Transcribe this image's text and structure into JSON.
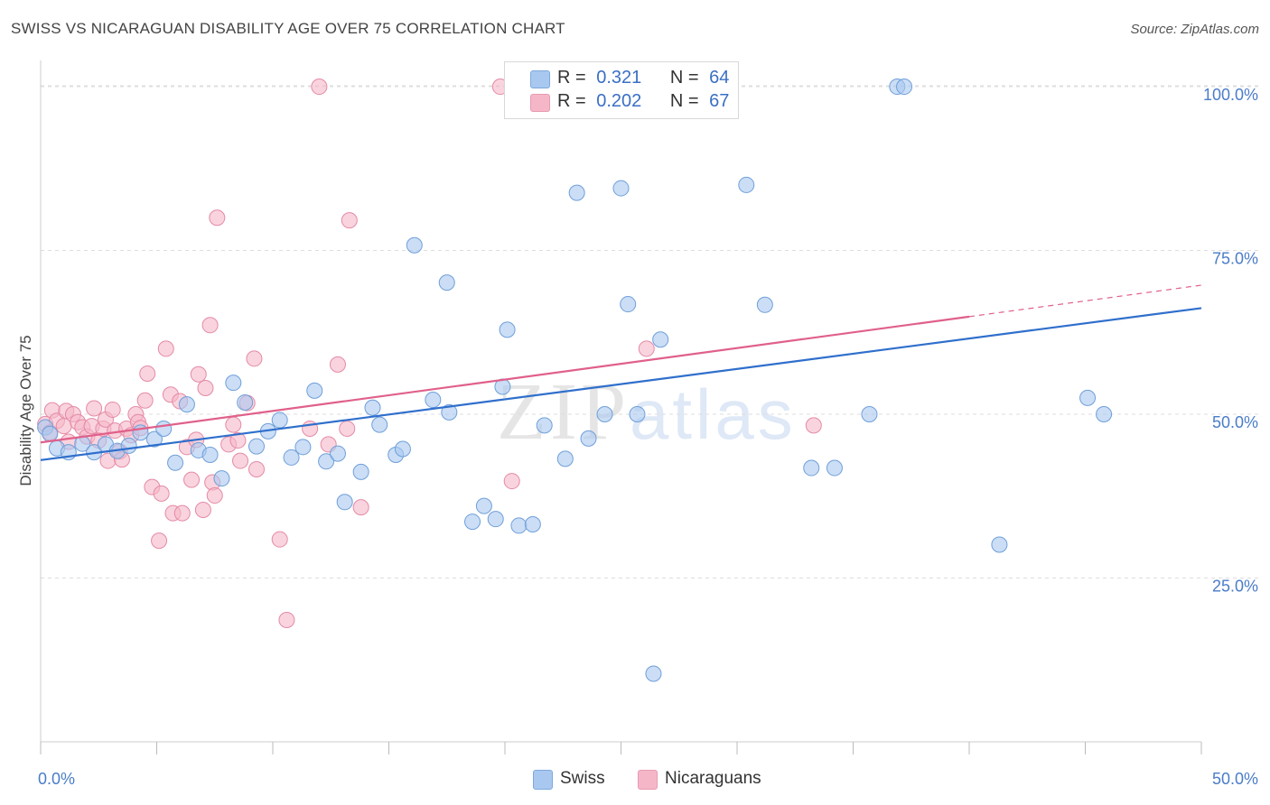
{
  "title": "SWISS VS NICARAGUAN DISABILITY AGE OVER 75 CORRELATION CHART",
  "source": "Source: ZipAtlas.com",
  "watermark": {
    "zip": "ZIP",
    "atlas": "atlas"
  },
  "legend": {
    "rows": [
      {
        "r_label": "R =",
        "r_value": "0.321",
        "n_label": "N =",
        "n_value": "64",
        "color": "#a8c8f0"
      },
      {
        "r_label": "R =",
        "r_value": "0.202",
        "n_label": "N =",
        "n_value": "67",
        "color": "#f5b7c8"
      }
    ]
  },
  "bottom_legend": [
    {
      "label": "Swiss",
      "color": "#a8c8f0"
    },
    {
      "label": "Nicaraguans",
      "color": "#f5b7c8"
    }
  ],
  "colors": {
    "swiss_fill": "#a8c8f0",
    "swiss_stroke": "#6f9fd9",
    "swiss_line": "#2f6fcc",
    "nic_fill": "#f5b7c8",
    "nic_stroke": "#e58aa6",
    "nic_line": "#e0608a",
    "grid": "#dddddd",
    "axis_text": "#4a7cc9"
  },
  "chart_data": {
    "type": "scatter",
    "title": "SWISS VS NICARAGUAN DISABILITY AGE OVER 75 CORRELATION CHART",
    "xlabel": "",
    "ylabel": "Disability Age Over 75",
    "xlim": [
      0,
      50
    ],
    "ylim": [
      0,
      104
    ],
    "x_tick_labels": [
      "0.0%",
      "50.0%"
    ],
    "y_ticks": [
      25,
      50,
      75,
      100
    ],
    "y_tick_labels": [
      "25.0%",
      "50.0%",
      "75.0%",
      "100.0%"
    ],
    "grid": "horizontal dashed",
    "series": [
      {
        "name": "Swiss",
        "r": 0.321,
        "n": 64,
        "trend": {
          "x": [
            0,
            50
          ],
          "y": [
            43.0,
            66.2
          ],
          "dashed_from": null
        },
        "points": [
          [
            0.2,
            48.0
          ],
          [
            0.4,
            47.0
          ],
          [
            0.7,
            44.8
          ],
          [
            1.2,
            44.2
          ],
          [
            1.8,
            45.5
          ],
          [
            2.3,
            44.2
          ],
          [
            2.8,
            45.4
          ],
          [
            3.3,
            44.4
          ],
          [
            3.8,
            45.2
          ],
          [
            4.3,
            47.2
          ],
          [
            4.9,
            46.2
          ],
          [
            5.3,
            47.8
          ],
          [
            5.8,
            42.6
          ],
          [
            6.3,
            51.5
          ],
          [
            6.8,
            44.5
          ],
          [
            7.3,
            43.8
          ],
          [
            7.8,
            40.2
          ],
          [
            8.3,
            54.8
          ],
          [
            8.8,
            51.8
          ],
          [
            9.3,
            45.1
          ],
          [
            9.8,
            47.4
          ],
          [
            10.3,
            49.1
          ],
          [
            10.8,
            43.4
          ],
          [
            11.3,
            45.0
          ],
          [
            11.8,
            53.6
          ],
          [
            12.3,
            42.8
          ],
          [
            12.8,
            44.0
          ],
          [
            13.1,
            36.6
          ],
          [
            13.8,
            41.2
          ],
          [
            14.3,
            51.0
          ],
          [
            14.6,
            48.4
          ],
          [
            15.3,
            43.8
          ],
          [
            15.6,
            44.7
          ],
          [
            16.1,
            75.8
          ],
          [
            16.9,
            52.2
          ],
          [
            17.5,
            70.1
          ],
          [
            17.6,
            50.3
          ],
          [
            18.6,
            33.6
          ],
          [
            19.1,
            36.0
          ],
          [
            19.6,
            34.0
          ],
          [
            19.9,
            54.2
          ],
          [
            20.1,
            62.9
          ],
          [
            20.6,
            33.0
          ],
          [
            21.2,
            33.2
          ],
          [
            21.7,
            48.3
          ],
          [
            22.6,
            43.2
          ],
          [
            23.1,
            83.8
          ],
          [
            23.6,
            46.3
          ],
          [
            24.3,
            50.0
          ],
          [
            25.0,
            84.5
          ],
          [
            25.3,
            66.8
          ],
          [
            25.7,
            50.0
          ],
          [
            26.4,
            10.4
          ],
          [
            26.7,
            61.4
          ],
          [
            30.4,
            85.0
          ],
          [
            31.2,
            66.7
          ],
          [
            33.2,
            41.8
          ],
          [
            34.2,
            41.8
          ],
          [
            35.7,
            50.0
          ],
          [
            36.9,
            100.0
          ],
          [
            37.2,
            100.0
          ],
          [
            41.3,
            30.1
          ],
          [
            45.1,
            52.5
          ],
          [
            45.8,
            50.0
          ]
        ]
      },
      {
        "name": "Nicaraguans",
        "r": 0.202,
        "n": 67,
        "trend": {
          "x": [
            0,
            40
          ],
          "y": [
            45.7,
            64.9
          ],
          "dashed_from": 40,
          "dashed_x": [
            40,
            50
          ],
          "dashed_y": [
            64.9,
            69.7
          ]
        },
        "points": [
          [
            0.2,
            48.5
          ],
          [
            0.4,
            47.2
          ],
          [
            0.5,
            50.6
          ],
          [
            0.7,
            49.0
          ],
          [
            1.0,
            48.2
          ],
          [
            1.1,
            50.5
          ],
          [
            1.2,
            45.8
          ],
          [
            1.4,
            50.0
          ],
          [
            1.6,
            48.8
          ],
          [
            1.8,
            48.0
          ],
          [
            2.0,
            46.6
          ],
          [
            2.2,
            48.2
          ],
          [
            2.3,
            50.9
          ],
          [
            2.5,
            46.0
          ],
          [
            2.7,
            47.8
          ],
          [
            2.8,
            49.2
          ],
          [
            2.9,
            42.9
          ],
          [
            3.1,
            50.7
          ],
          [
            3.2,
            47.5
          ],
          [
            3.4,
            44.3
          ],
          [
            3.5,
            43.1
          ],
          [
            3.7,
            47.8
          ],
          [
            3.9,
            46.8
          ],
          [
            4.1,
            50.0
          ],
          [
            4.2,
            48.8
          ],
          [
            4.3,
            47.9
          ],
          [
            4.5,
            52.1
          ],
          [
            4.6,
            56.2
          ],
          [
            4.8,
            38.9
          ],
          [
            5.1,
            30.7
          ],
          [
            5.2,
            37.9
          ],
          [
            5.4,
            60.0
          ],
          [
            5.6,
            53.0
          ],
          [
            5.7,
            34.9
          ],
          [
            6.0,
            52.0
          ],
          [
            6.1,
            34.9
          ],
          [
            6.3,
            45.0
          ],
          [
            6.5,
            40.0
          ],
          [
            6.7,
            46.1
          ],
          [
            6.8,
            56.1
          ],
          [
            7.0,
            35.4
          ],
          [
            7.1,
            54.0
          ],
          [
            7.3,
            63.6
          ],
          [
            7.4,
            39.6
          ],
          [
            7.5,
            37.6
          ],
          [
            7.6,
            80.0
          ],
          [
            8.1,
            45.4
          ],
          [
            8.3,
            48.4
          ],
          [
            8.5,
            46.0
          ],
          [
            8.6,
            42.9
          ],
          [
            8.9,
            51.7
          ],
          [
            9.2,
            58.5
          ],
          [
            9.3,
            41.6
          ],
          [
            10.3,
            30.9
          ],
          [
            10.6,
            18.6
          ],
          [
            11.6,
            47.8
          ],
          [
            12.0,
            100.0
          ],
          [
            12.4,
            45.4
          ],
          [
            12.8,
            57.6
          ],
          [
            13.2,
            47.8
          ],
          [
            13.3,
            79.6
          ],
          [
            13.8,
            35.8
          ],
          [
            19.8,
            100.0
          ],
          [
            20.3,
            39.8
          ],
          [
            21.7,
            100.0
          ],
          [
            26.1,
            60.0
          ],
          [
            33.3,
            48.3
          ]
        ]
      }
    ]
  }
}
